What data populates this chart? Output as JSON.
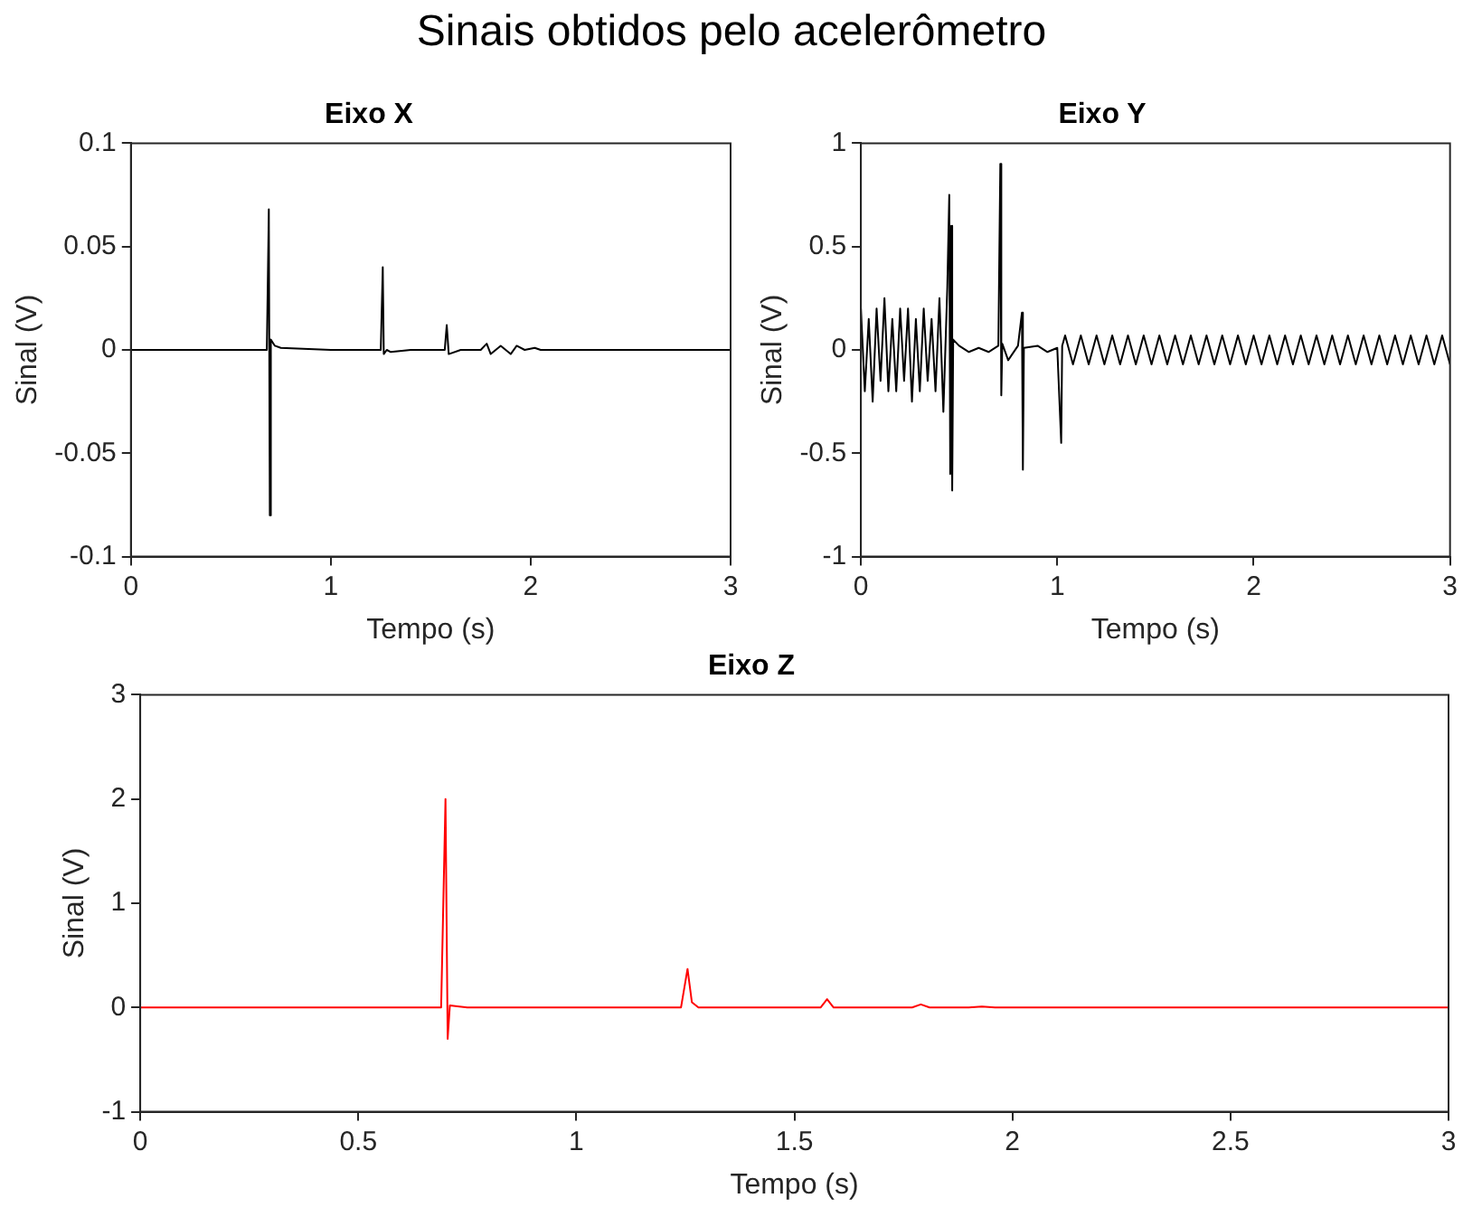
{
  "chart_data": [
    {
      "type": "other",
      "title": "Sinais obtidos pelo acelerômetro"
    },
    {
      "type": "line",
      "title": "Eixo X",
      "xlabel": "Tempo (s)",
      "ylabel": "Sinal (V)",
      "xlim": [
        0,
        3
      ],
      "xticks": [
        0,
        1,
        2,
        3
      ],
      "ylim": [
        -0.1,
        0.1
      ],
      "yticks": [
        -0.1,
        -0.05,
        0,
        0.05,
        0.1
      ],
      "x": [
        0,
        0.3,
        0.6,
        0.68,
        0.69,
        0.695,
        0.7,
        0.72,
        0.75,
        1.0,
        1.25,
        1.26,
        1.265,
        1.28,
        1.3,
        1.4,
        1.5,
        1.57,
        1.58,
        1.59,
        1.65,
        1.75,
        1.78,
        1.8,
        1.85,
        1.9,
        1.93,
        1.97,
        2.02,
        2.05,
        2.2,
        2.6,
        3.0
      ],
      "series": [
        {
          "color": "#000000",
          "values": [
            0,
            0,
            0,
            0,
            0.068,
            -0.08,
            0.005,
            0.002,
            0.001,
            0,
            0,
            0.04,
            -0.002,
            0,
            -0.001,
            0,
            0,
            0,
            0.012,
            -0.002,
            0,
            0,
            0.003,
            -0.002,
            0.002,
            -0.002,
            0.002,
            0,
            0.001,
            0,
            0,
            0,
            0
          ]
        }
      ]
    },
    {
      "type": "line",
      "title": "Eixo Y",
      "xlabel": "Tempo (s)",
      "ylabel": "Sinal (V)",
      "xlim": [
        0,
        3
      ],
      "xticks": [
        0,
        1,
        2,
        3
      ],
      "ylim": [
        -1,
        1
      ],
      "yticks": [
        -1,
        -0.5,
        0,
        0.5,
        1
      ],
      "x": [
        0,
        0.02,
        0.04,
        0.06,
        0.08,
        0.1,
        0.12,
        0.14,
        0.16,
        0.18,
        0.2,
        0.22,
        0.24,
        0.26,
        0.28,
        0.3,
        0.32,
        0.34,
        0.36,
        0.38,
        0.4,
        0.42,
        0.44,
        0.45,
        0.455,
        0.46,
        0.465,
        0.47,
        0.5,
        0.55,
        0.6,
        0.65,
        0.7,
        0.71,
        0.715,
        0.72,
        0.75,
        0.8,
        0.82,
        0.825,
        0.83,
        0.9,
        0.95,
        1.0,
        1.02,
        1.025,
        1.04,
        1.08,
        1.12,
        1.16,
        1.2,
        1.24,
        1.28,
        1.32,
        1.36,
        1.4,
        1.44,
        1.48,
        1.52,
        1.56,
        1.6,
        1.64,
        1.68,
        1.72,
        1.76,
        1.8,
        1.84,
        1.88,
        1.92,
        1.96,
        2.0,
        2.04,
        2.08,
        2.12,
        2.16,
        2.2,
        2.24,
        2.28,
        2.32,
        2.36,
        2.4,
        2.44,
        2.48,
        2.52,
        2.56,
        2.6,
        2.64,
        2.68,
        2.72,
        2.76,
        2.8,
        2.84,
        2.88,
        2.92,
        2.96,
        3.0
      ],
      "series": [
        {
          "color": "#000000",
          "values": [
            0.2,
            -0.2,
            0.15,
            -0.25,
            0.2,
            -0.15,
            0.25,
            -0.2,
            0.15,
            -0.2,
            0.2,
            -0.15,
            0.2,
            -0.25,
            0.15,
            -0.2,
            0.2,
            -0.15,
            0.15,
            -0.2,
            0.25,
            -0.3,
            0.3,
            0.75,
            -0.6,
            0.6,
            -0.68,
            0.05,
            0.02,
            -0.01,
            0.01,
            -0.01,
            0.02,
            0.9,
            -0.22,
            0.03,
            -0.05,
            0.02,
            0.18,
            -0.58,
            0.01,
            0.02,
            -0.01,
            0.01,
            -0.45,
            0.02,
            0.07,
            -0.07,
            0.07,
            -0.07,
            0.07,
            -0.07,
            0.07,
            -0.07,
            0.07,
            -0.07,
            0.07,
            -0.07,
            0.07,
            -0.07,
            0.07,
            -0.07,
            0.07,
            -0.07,
            0.07,
            -0.07,
            0.07,
            -0.07,
            0.07,
            -0.07,
            0.07,
            -0.07,
            0.07,
            -0.07,
            0.07,
            -0.07,
            0.07,
            -0.07,
            0.07,
            -0.07,
            0.07,
            -0.07,
            0.07,
            -0.07,
            0.07,
            -0.07,
            0.07,
            -0.07,
            0.07,
            -0.07,
            0.07,
            -0.07,
            0.07,
            -0.07,
            0.07,
            -0.07
          ]
        }
      ]
    },
    {
      "type": "line",
      "title": "Eixo Z",
      "xlabel": "Tempo (s)",
      "ylabel": "Sinal (V)",
      "xlim": [
        0,
        3
      ],
      "xticks": [
        0,
        0.5,
        1,
        1.5,
        2,
        2.5,
        3
      ],
      "ylim": [
        -1,
        3
      ],
      "yticks": [
        -1,
        0,
        1,
        2,
        3
      ],
      "x": [
        0,
        0.3,
        0.6,
        0.69,
        0.7,
        0.705,
        0.71,
        0.75,
        1.0,
        1.24,
        1.255,
        1.265,
        1.28,
        1.4,
        1.56,
        1.575,
        1.59,
        1.7,
        1.77,
        1.79,
        1.81,
        1.9,
        1.93,
        1.96,
        2.2,
        2.6,
        3.0
      ],
      "series": [
        {
          "color": "#ff0000",
          "values": [
            0,
            0,
            0,
            0,
            2.0,
            -0.3,
            0.02,
            0,
            0,
            0,
            0.37,
            0.05,
            0,
            0,
            0,
            0.08,
            0,
            0,
            0,
            0.03,
            0,
            0,
            0.01,
            0,
            0,
            0,
            0
          ]
        }
      ]
    }
  ]
}
